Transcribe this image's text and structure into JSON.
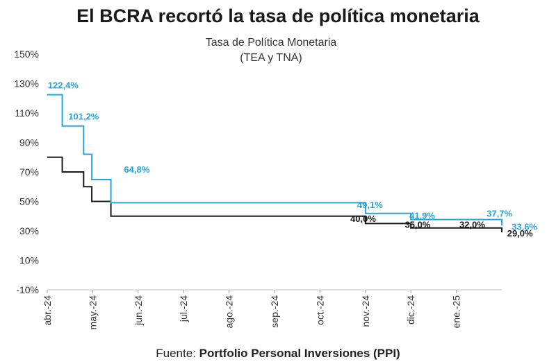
{
  "header": {
    "title": "El BCRA recortó la tasa de política monetaria"
  },
  "source": {
    "prefix": "Fuente:",
    "name": "Portfolio Personal Inversiones (PPI)"
  },
  "chart_data": {
    "type": "line",
    "title": "Tasa de Política Monetaria",
    "subtitle": "(TEA y TNA)",
    "xlabel": "",
    "ylabel": "",
    "ylim": [
      -10,
      150
    ],
    "yticks": [
      -10,
      10,
      30,
      50,
      70,
      90,
      110,
      130,
      150
    ],
    "ytick_labels": [
      "-10%",
      "10%",
      "30%",
      "50%",
      "70%",
      "90%",
      "110%",
      "130%",
      "150%"
    ],
    "x_domain": [
      0,
      10
    ],
    "x_ticks": [
      0,
      1,
      2,
      3,
      4,
      5,
      6,
      7,
      8,
      9
    ],
    "x_tick_labels": [
      "abr.-24",
      "may.-24",
      "jun.-24",
      "jul.-24",
      "ago.-24",
      "sep.-24",
      "oct.-24",
      "nov.-24",
      "dic.-24",
      "ene.-25"
    ],
    "colors": {
      "tea": "#29a3dc",
      "tna": "#1a1a1a"
    },
    "series": [
      {
        "name": "TEA",
        "color": "#29a3dc",
        "x": [
          0,
          0.33,
          0.8,
          0.98,
          1.4,
          7.0,
          8.0,
          10.0
        ],
        "y": [
          122.4,
          101.2,
          82.0,
          64.8,
          49.1,
          41.9,
          37.7,
          33.6
        ]
      },
      {
        "name": "TNA",
        "color": "#1a1a1a",
        "x": [
          0,
          0.33,
          0.8,
          0.98,
          1.4,
          7.0,
          8.0,
          10.0
        ],
        "y": [
          80.0,
          70.0,
          60.0,
          50.0,
          40.0,
          35.0,
          32.0,
          29.0
        ]
      }
    ],
    "annotations": [
      {
        "text": "122,4%",
        "series": "TEA",
        "x": 0.35,
        "y": 129
      },
      {
        "text": "101,2%",
        "series": "TEA",
        "x": 0.8,
        "y": 108
      },
      {
        "text": "64,8%",
        "series": "TEA",
        "x": 1.97,
        "y": 72
      },
      {
        "text": "49,1%",
        "series": "TEA",
        "x": 7.1,
        "y": 48
      },
      {
        "text": "41,9%",
        "series": "TEA",
        "x": 8.25,
        "y": 40.5
      },
      {
        "text": "37,7%",
        "series": "TEA",
        "x": 9.95,
        "y": 42
      },
      {
        "text": "33,6%",
        "series": "TEA",
        "x": 10.5,
        "y": 33
      },
      {
        "text": "40,0%",
        "series": "TNA",
        "x": 6.95,
        "y": 38.5
      },
      {
        "text": "35,0%",
        "series": "TNA",
        "x": 8.15,
        "y": 34.5
      },
      {
        "text": "32,0%",
        "series": "TNA",
        "x": 9.35,
        "y": 34.5
      },
      {
        "text": "29,0%",
        "series": "TNA",
        "x": 10.4,
        "y": 28.5
      }
    ]
  }
}
